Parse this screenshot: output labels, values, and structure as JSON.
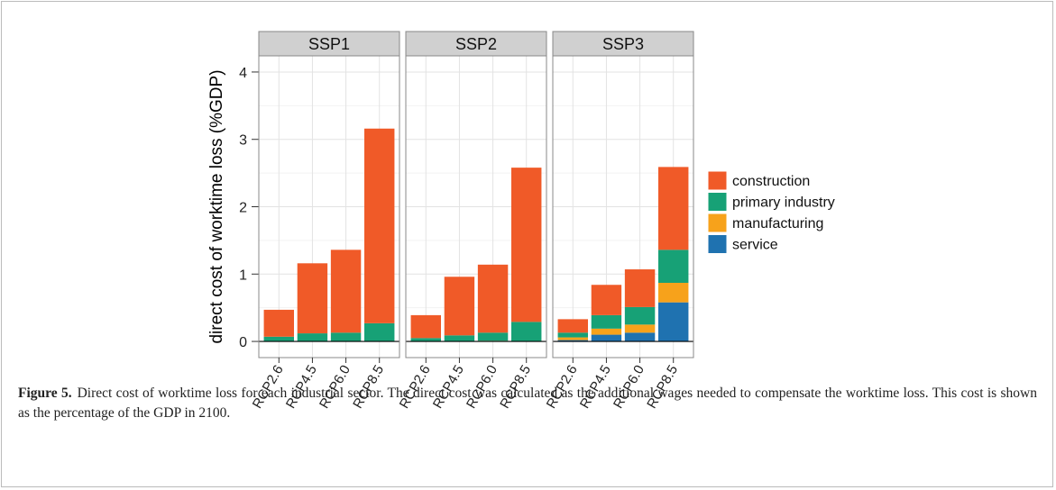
{
  "chart_data": {
    "type": "bar",
    "stacked": true,
    "y_label": "direct cost of worktime loss (%GDP)",
    "categories": [
      "RCP2.6",
      "RCP4.5",
      "RCP6.0",
      "RCP8.5"
    ],
    "ylim": [
      -0.24,
      4.24
    ],
    "yticks": [
      0,
      1,
      2,
      3,
      4
    ],
    "grid": true,
    "series": [
      {
        "name": "service",
        "color": "#1f72b0"
      },
      {
        "name": "manufacturing",
        "color": "#f7a21b"
      },
      {
        "name": "primary industry",
        "color": "#17a176"
      },
      {
        "name": "construction",
        "color": "#f05a28"
      }
    ],
    "facets": [
      {
        "title": "SSP1",
        "values": [
          [
            0,
            0,
            0,
            0
          ],
          [
            0,
            0,
            0,
            0
          ],
          [
            0.07,
            0.12,
            0.13,
            0.27
          ],
          [
            0.4,
            1.04,
            1.23,
            2.89
          ]
        ]
      },
      {
        "title": "SSP2",
        "values": [
          [
            0,
            0,
            0,
            0
          ],
          [
            0,
            0,
            0.01,
            0
          ],
          [
            0.05,
            0.09,
            0.12,
            0.29
          ],
          [
            0.34,
            0.87,
            1.01,
            2.29
          ]
        ]
      },
      {
        "title": "SSP3",
        "values": [
          [
            0.02,
            0.1,
            0.13,
            0.58
          ],
          [
            0.04,
            0.09,
            0.12,
            0.29
          ],
          [
            0.07,
            0.2,
            0.26,
            0.49
          ],
          [
            0.2,
            0.45,
            0.56,
            1.23
          ]
        ]
      }
    ]
  },
  "caption": {
    "label": "Figure 5.",
    "text": "Direct cost of worktime loss for each industrial sector. The direct cost was calculated as the additional wages needed to compensate the worktime loss. This cost is shown as the percentage of the GDP in 2100."
  }
}
